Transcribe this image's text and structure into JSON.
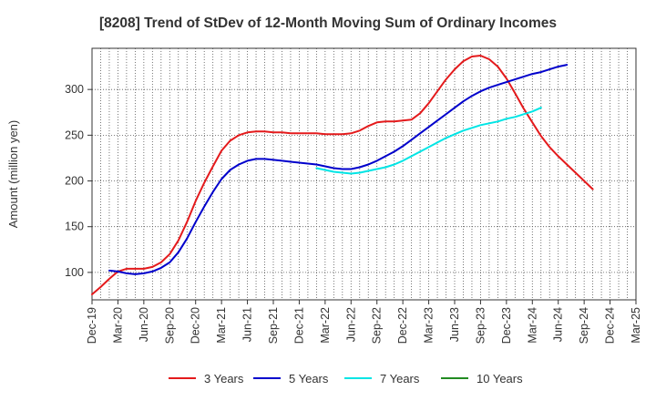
{
  "chart_data": {
    "type": "line",
    "title": "[8208]  Trend of StDev of 12-Month Moving Sum of Ordinary Incomes",
    "ylabel": "Amount (million yen)",
    "xlabel": "",
    "ylim": [
      70,
      345
    ],
    "yticks": [
      100,
      150,
      200,
      250,
      300
    ],
    "grid": true,
    "legend_position": "bottom",
    "x_tick_labels": [
      "Dec-19",
      "Mar-20",
      "Jun-20",
      "Sep-20",
      "Dec-20",
      "Mar-21",
      "Jun-21",
      "Sep-21",
      "Dec-21",
      "Mar-22",
      "Jun-22",
      "Sep-22",
      "Dec-22",
      "Mar-23",
      "Jun-23",
      "Sep-23",
      "Dec-23",
      "Mar-24",
      "Jun-24",
      "Sep-24",
      "Dec-24",
      "Mar-25"
    ],
    "series": [
      {
        "name": "3 Years",
        "color": "#e41a1c",
        "start_index": 0,
        "values": [
          76,
          84,
          93,
          101,
          104,
          104,
          104,
          106,
          111,
          120,
          135,
          155,
          178,
          198,
          216,
          233,
          244,
          250,
          253,
          254,
          254,
          253,
          253,
          252,
          252,
          252,
          252,
          251,
          251,
          251,
          252,
          255,
          260,
          264,
          265,
          265,
          266,
          267,
          274,
          285,
          298,
          311,
          322,
          331,
          336,
          337,
          333,
          325,
          312,
          296,
          279,
          264,
          249,
          237,
          227,
          218,
          209,
          200,
          191
        ]
      },
      {
        "name": "5 Years",
        "color": "#0000cc",
        "start_index": 2,
        "values": [
          102,
          101,
          99,
          98,
          99,
          101,
          105,
          111,
          122,
          137,
          155,
          172,
          188,
          202,
          212,
          218,
          222,
          224,
          224,
          223,
          222,
          221,
          220,
          219,
          218,
          216,
          214,
          213,
          213,
          215,
          218,
          222,
          227,
          232,
          238,
          245,
          252,
          259,
          266,
          273,
          280,
          287,
          293,
          298,
          302,
          305,
          308,
          311,
          314,
          317,
          319,
          322,
          325,
          327
        ]
      },
      {
        "name": "7 Years",
        "color": "#00e5e5",
        "start_index": 26,
        "values": [
          214,
          212,
          210,
          209,
          208,
          209,
          211,
          213,
          215,
          218,
          222,
          227,
          232,
          237,
          242,
          247,
          251,
          255,
          258,
          261,
          263,
          265,
          268,
          270,
          273,
          276,
          280
        ]
      },
      {
        "name": "10 Years",
        "color": "#228b22",
        "start_index": 0,
        "values": []
      }
    ]
  }
}
